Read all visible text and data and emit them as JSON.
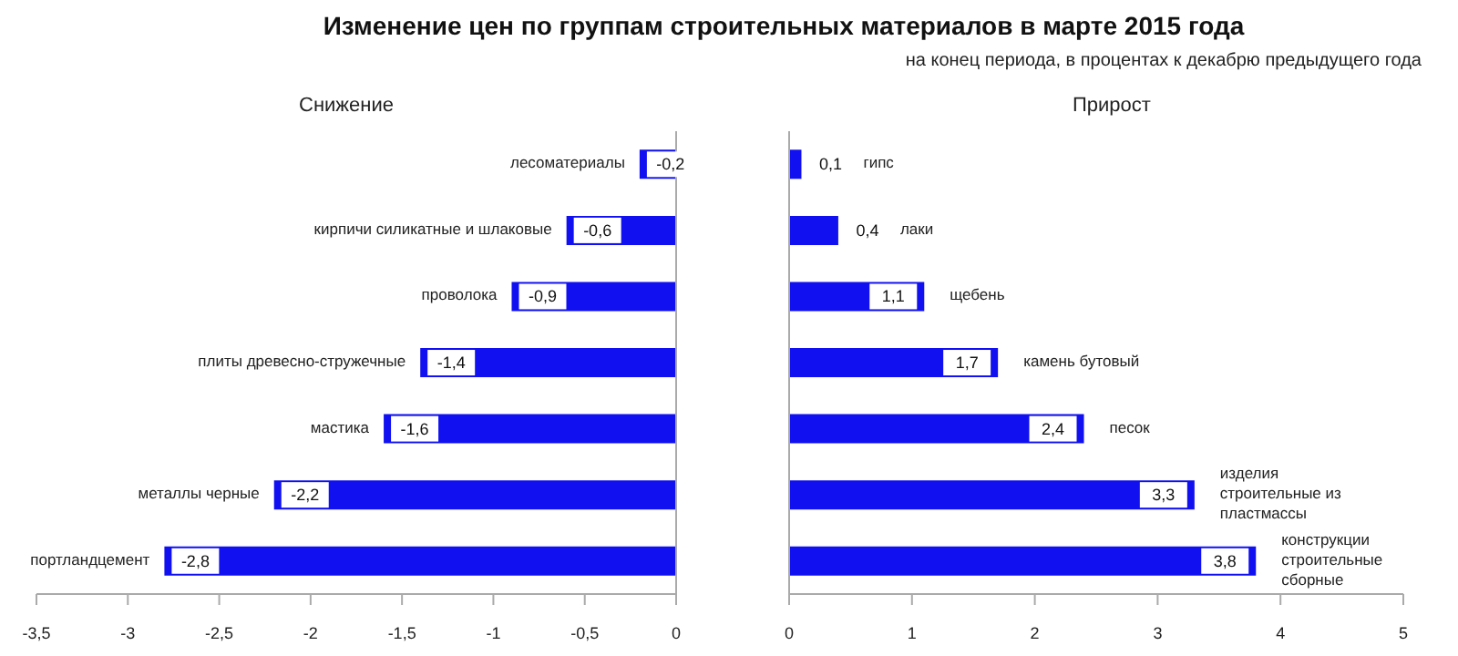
{
  "chart_data": [
    {
      "type": "bar",
      "orientation": "horizontal",
      "title": "Изменение цен по группам строительных  материалов в марте 2015 года",
      "annotations": [
        "Снижение"
      ],
      "categories": [
        "лесоматериалы",
        "кирпичи силикатные и шлаковые",
        "проволока",
        "плиты древесно-стружечные",
        "мастика",
        "металлы черные",
        "портландцемент"
      ],
      "values": [
        -0.2,
        -0.6,
        -0.9,
        -1.4,
        -1.6,
        -2.2,
        -2.8
      ],
      "value_labels": [
        "-0,2",
        "-0,6",
        "-0,9",
        "-1,4",
        "-1,6",
        "-2,2",
        "-2,8"
      ],
      "color": "#1010f0",
      "xlim": [
        -3.5,
        0
      ],
      "xticks": [
        {
          "value": -3.5,
          "label": "-3,5"
        },
        -3,
        {
          "value": -2.5,
          "label": "-2,5"
        },
        -2,
        {
          "value": -1.5,
          "label": "-1,5"
        },
        -1,
        {
          "value": -0.5,
          "label": "-0,5"
        },
        0
      ]
    },
    {
      "type": "bar",
      "orientation": "horizontal",
      "subtitle": "на конец периода, в процентах к декабрю предыдущего года",
      "annotations": [
        "Прирост"
      ],
      "categories": [
        "гипс",
        "лаки",
        "щебень",
        "камень бутовый",
        "песок",
        "изделия строительные из пластмассы",
        "конструкции строительные сборные"
      ],
      "values": [
        0.1,
        0.4,
        1.1,
        1.7,
        2.4,
        3.3,
        3.8
      ],
      "value_labels": [
        "0,1",
        "0,4",
        "1,1",
        "1,7",
        "2,4",
        "3,3",
        "3,8"
      ],
      "color": "#1010f0",
      "xlim": [
        0,
        5
      ],
      "xticks": [
        0,
        1,
        2,
        3,
        4,
        5
      ]
    }
  ]
}
